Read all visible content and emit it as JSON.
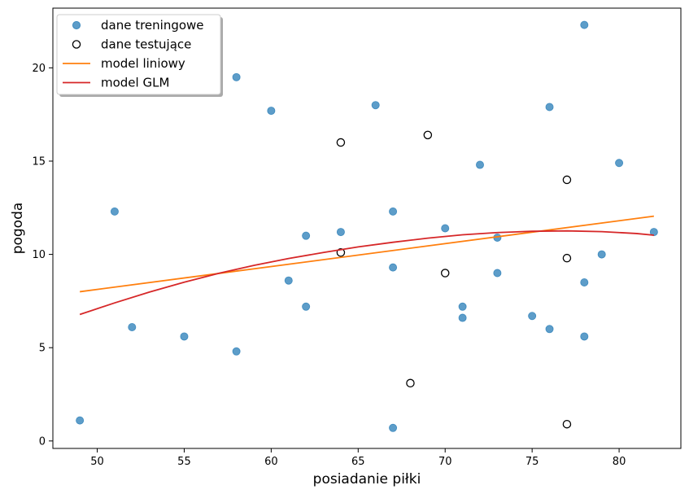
{
  "chart_data": {
    "type": "scatter",
    "title": "",
    "xlabel": "posiadanie piłki",
    "ylabel": "pogoda",
    "xlim": [
      47.45,
      83.55
    ],
    "ylim": [
      -0.4,
      23.2
    ],
    "xticks": [
      50,
      55,
      60,
      65,
      70,
      75,
      80
    ],
    "yticks": [
      0,
      5,
      10,
      15,
      20
    ],
    "grid": false,
    "legend_position": "top-left",
    "series": [
      {
        "name": "dane treningowe",
        "kind": "scatter",
        "marker": "filled-circle",
        "color": "#1f77b4",
        "points": [
          [
            49,
            1.1
          ],
          [
            51,
            12.3
          ],
          [
            52,
            6.1
          ],
          [
            55,
            5.6
          ],
          [
            58,
            19.5
          ],
          [
            58,
            4.8
          ],
          [
            60,
            17.7
          ],
          [
            61,
            8.6
          ],
          [
            62,
            11.0
          ],
          [
            62,
            7.2
          ],
          [
            64,
            11.2
          ],
          [
            66,
            18.0
          ],
          [
            67,
            12.3
          ],
          [
            67,
            9.3
          ],
          [
            67,
            0.7
          ],
          [
            70,
            11.4
          ],
          [
            71,
            7.2
          ],
          [
            71,
            6.6
          ],
          [
            72,
            14.8
          ],
          [
            73,
            10.9
          ],
          [
            73,
            9.0
          ],
          [
            75,
            6.7
          ],
          [
            76,
            17.9
          ],
          [
            76,
            6.0
          ],
          [
            78,
            22.3
          ],
          [
            78,
            8.5
          ],
          [
            78,
            5.6
          ],
          [
            79,
            10.0
          ],
          [
            80,
            14.9
          ],
          [
            82,
            11.2
          ]
        ]
      },
      {
        "name": "dane testujące",
        "kind": "scatter",
        "marker": "open-circle",
        "color": "#000000",
        "points": [
          [
            64,
            16.0
          ],
          [
            64,
            10.1
          ],
          [
            68,
            3.1
          ],
          [
            69,
            16.4
          ],
          [
            70,
            9.0
          ],
          [
            77,
            14.0
          ],
          [
            77,
            9.8
          ],
          [
            77,
            0.9
          ]
        ]
      },
      {
        "name": "model liniowy",
        "kind": "line",
        "color": "#ff7f0e",
        "points": [
          [
            49,
            8.0
          ],
          [
            82,
            12.05
          ]
        ]
      },
      {
        "name": "model GLM",
        "kind": "line",
        "color": "#d62728",
        "points": [
          [
            49,
            6.78
          ],
          [
            51,
            7.4
          ],
          [
            53,
            7.98
          ],
          [
            55,
            8.51
          ],
          [
            57,
            8.99
          ],
          [
            59,
            9.41
          ],
          [
            61,
            9.78
          ],
          [
            63,
            10.1
          ],
          [
            65,
            10.4
          ],
          [
            67,
            10.65
          ],
          [
            69,
            10.87
          ],
          [
            71,
            11.05
          ],
          [
            73,
            11.17
          ],
          [
            75,
            11.24
          ],
          [
            77,
            11.26
          ],
          [
            79,
            11.22
          ],
          [
            81,
            11.12
          ],
          [
            82,
            11.03
          ]
        ]
      }
    ]
  }
}
